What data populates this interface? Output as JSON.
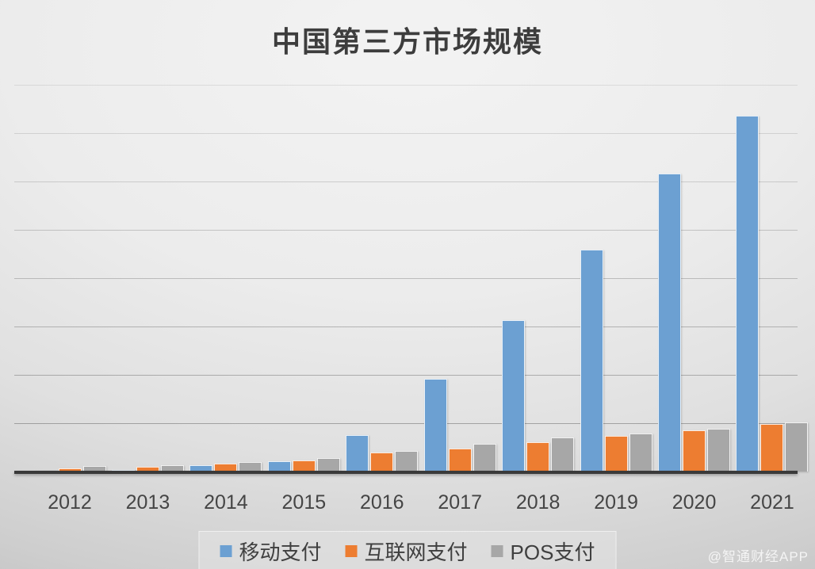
{
  "chart_data": {
    "type": "bar",
    "title": "中国第三方市场规模",
    "xlabel": "",
    "ylabel": "",
    "y_axis_tick_labels_visible": false,
    "ylim": [
      0,
      8
    ],
    "gridline_interval": 1,
    "grid": true,
    "legend_position": "bottom",
    "categories": [
      "2012",
      "2013",
      "2014",
      "2015",
      "2016",
      "2017",
      "2018",
      "2019",
      "2020",
      "2021"
    ],
    "series": [
      {
        "name": "移动支付",
        "color": "#6CA0D2",
        "values": [
          0.02,
          0.03,
          0.13,
          0.21,
          0.75,
          1.92,
          3.13,
          4.59,
          6.16,
          7.36
        ]
      },
      {
        "name": "互联网支付",
        "color": "#ED7D31",
        "values": [
          0.07,
          0.1,
          0.17,
          0.23,
          0.39,
          0.48,
          0.61,
          0.74,
          0.86,
          0.98
        ]
      },
      {
        "name": "POS支付",
        "color": "#A7A7A7",
        "values": [
          0.11,
          0.13,
          0.2,
          0.28,
          0.42,
          0.57,
          0.71,
          0.79,
          0.88,
          1.01
        ]
      }
    ]
  },
  "watermark": {
    "text": "@智通财经APP"
  }
}
